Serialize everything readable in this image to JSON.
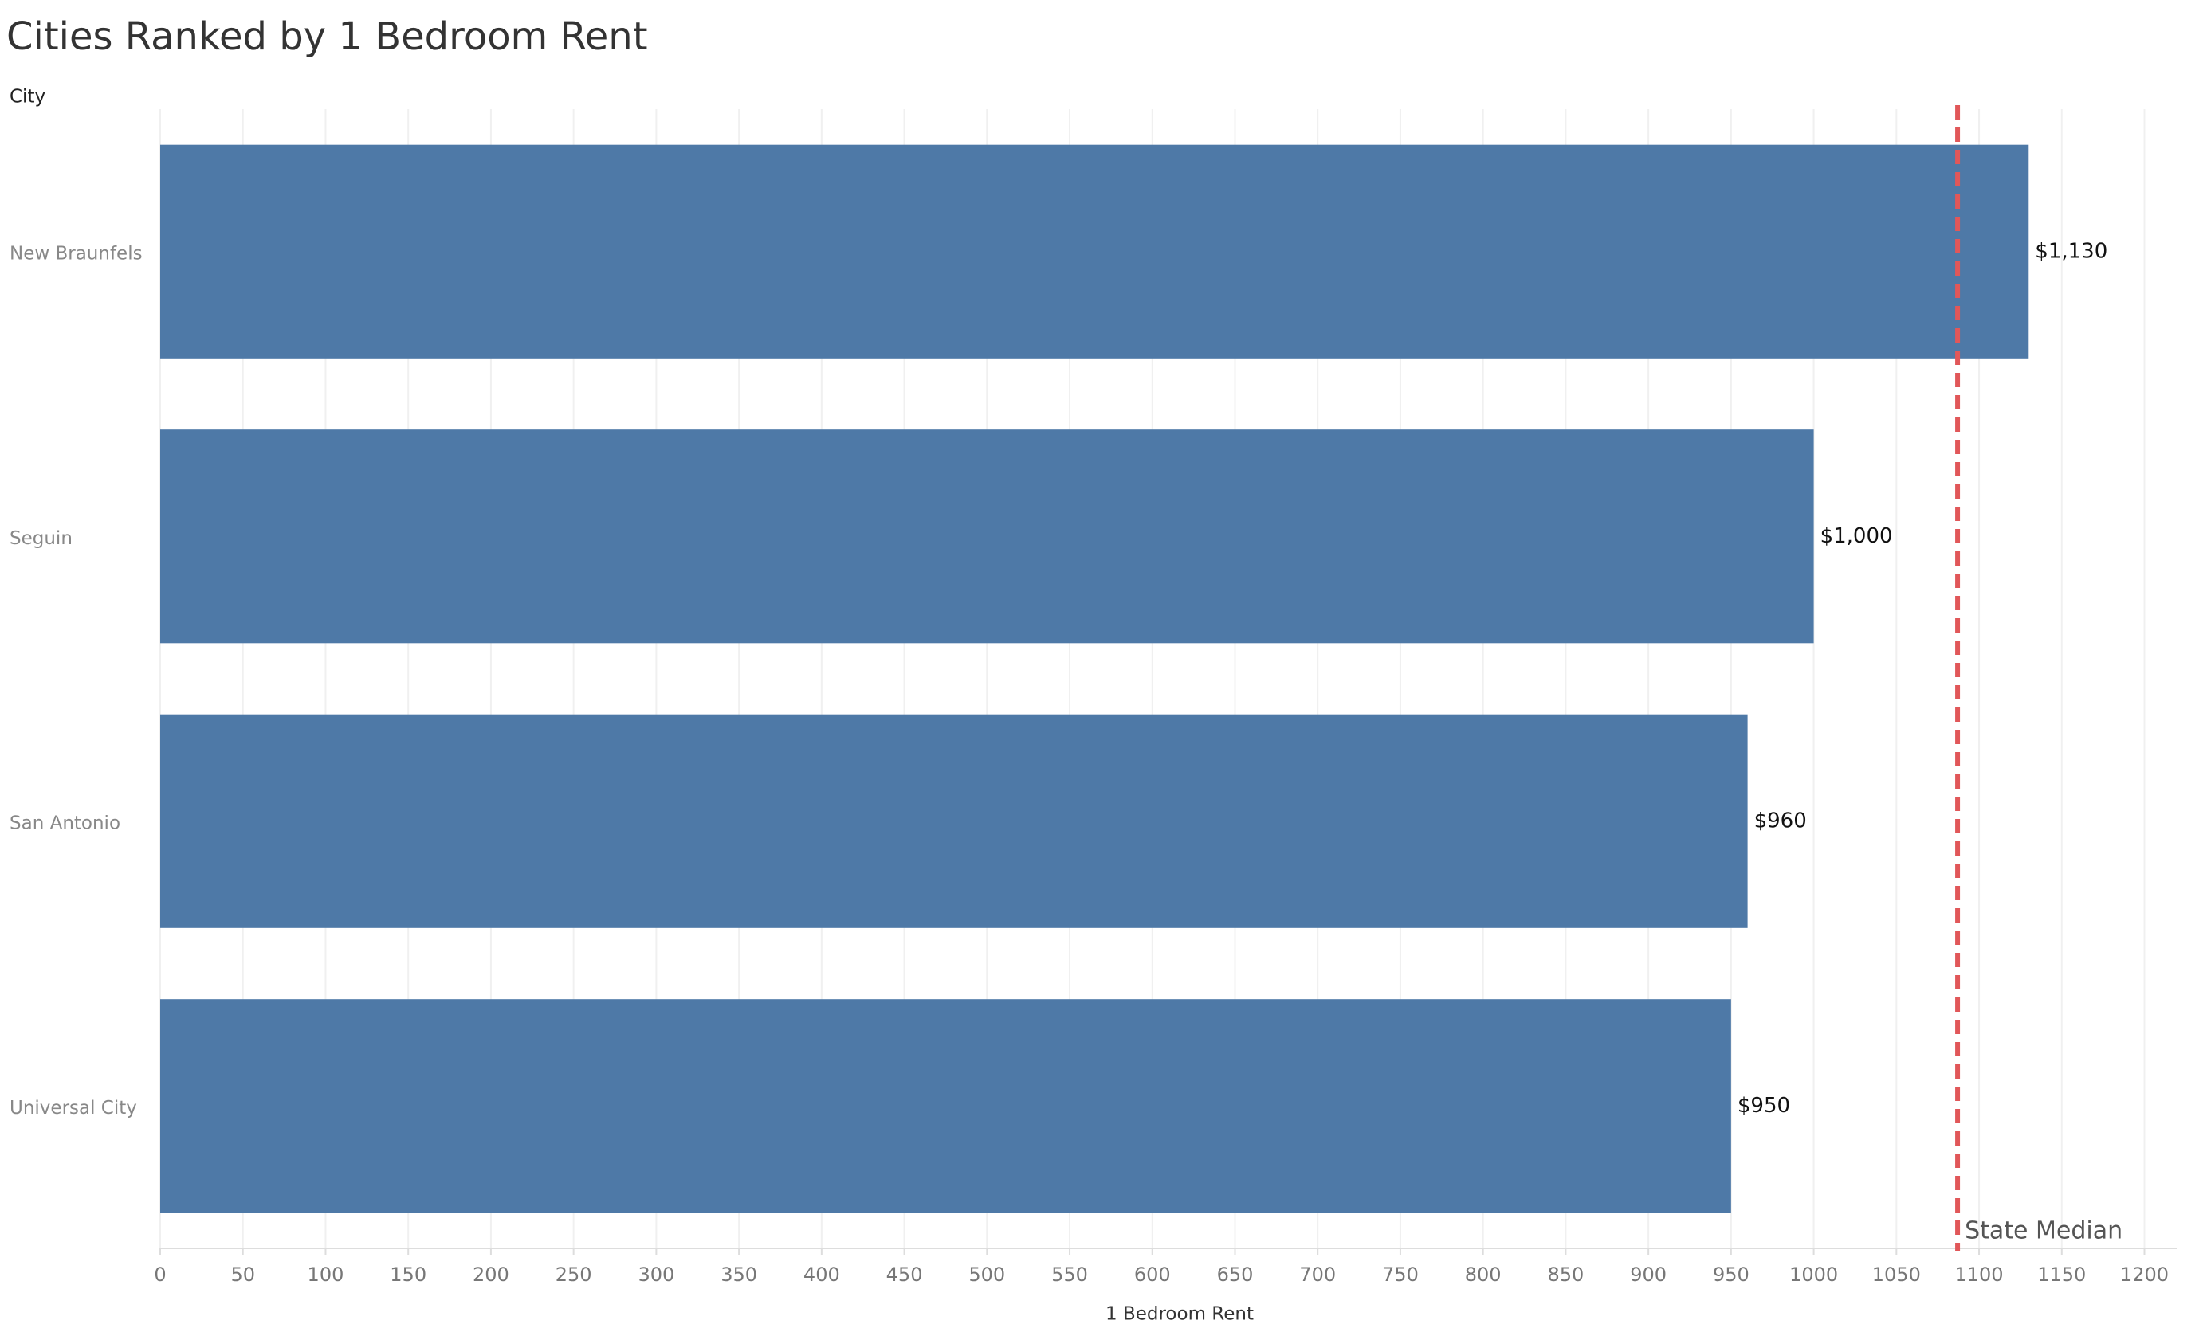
{
  "chart_data": {
    "type": "hbar",
    "title": "Cities Ranked by 1 Bedroom Rent",
    "y_label": "City",
    "x_label": "1 Bedroom Rent",
    "categories": [
      "New Braunfels",
      "Seguin",
      "San Antonio",
      "Universal City"
    ],
    "values": [
      1130,
      1000,
      960,
      950
    ],
    "value_labels": [
      "$1,130",
      "$1,000",
      "$960",
      "$950"
    ],
    "color": "#4e79a7",
    "xlim": [
      0,
      1220
    ],
    "xticks": [
      0,
      50,
      100,
      150,
      200,
      250,
      300,
      350,
      400,
      450,
      500,
      550,
      600,
      650,
      700,
      750,
      800,
      850,
      900,
      950,
      1000,
      1050,
      1100,
      1150,
      1200
    ],
    "grid": true,
    "reference_line": {
      "value": 1087,
      "label": "State Median",
      "color": "#e15759"
    }
  }
}
